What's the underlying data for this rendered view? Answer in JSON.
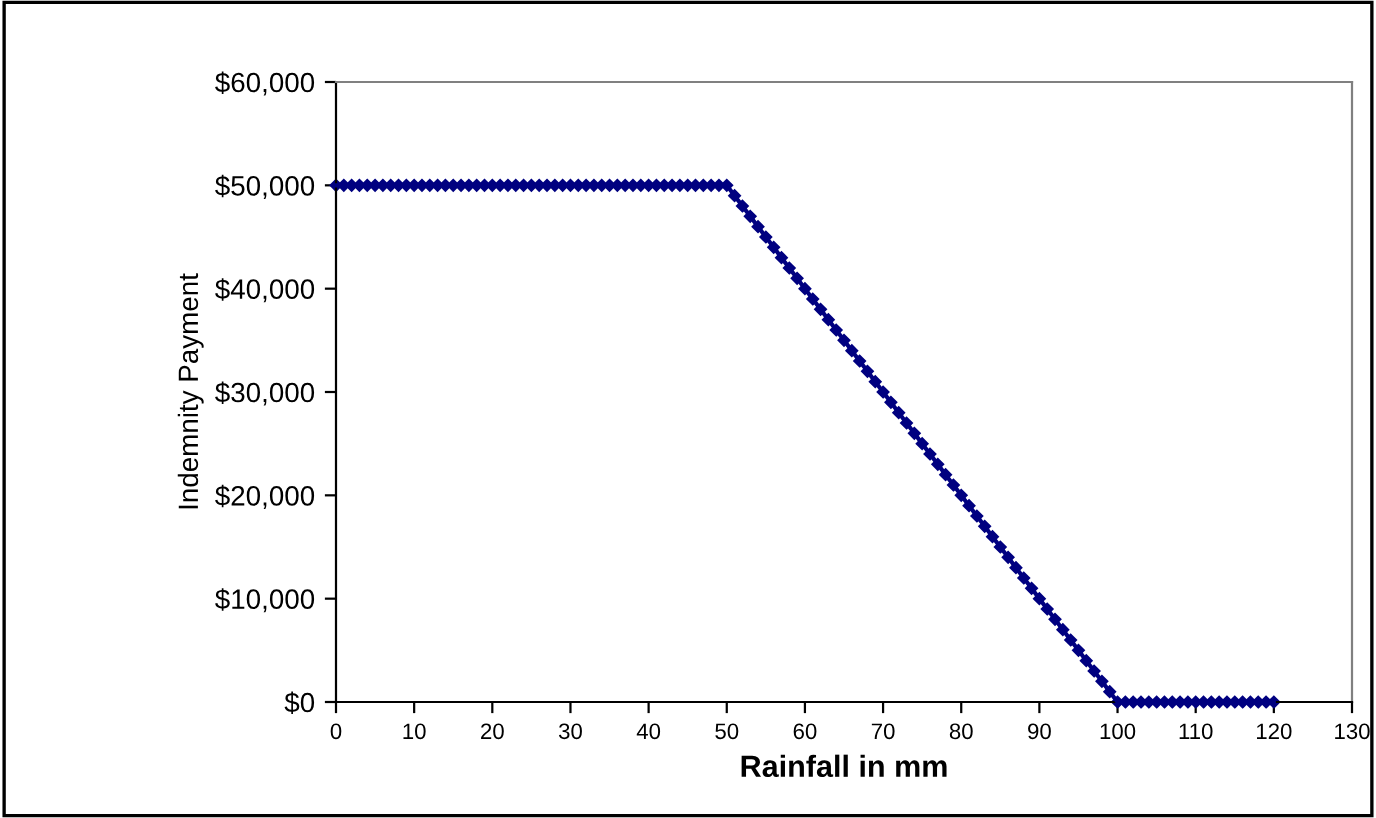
{
  "chart_data": {
    "type": "line",
    "xlabel": "Rainfall in mm",
    "ylabel": "Indemnity Payment",
    "x": [
      0,
      1,
      2,
      3,
      4,
      5,
      6,
      7,
      8,
      9,
      10,
      11,
      12,
      13,
      14,
      15,
      16,
      17,
      18,
      19,
      20,
      21,
      22,
      23,
      24,
      25,
      26,
      27,
      28,
      29,
      30,
      31,
      32,
      33,
      34,
      35,
      36,
      37,
      38,
      39,
      40,
      41,
      42,
      43,
      44,
      45,
      46,
      47,
      48,
      49,
      50,
      51,
      52,
      53,
      54,
      55,
      56,
      57,
      58,
      59,
      60,
      61,
      62,
      63,
      64,
      65,
      66,
      67,
      68,
      69,
      70,
      71,
      72,
      73,
      74,
      75,
      76,
      77,
      78,
      79,
      80,
      81,
      82,
      83,
      84,
      85,
      86,
      87,
      88,
      89,
      90,
      91,
      92,
      93,
      94,
      95,
      96,
      97,
      98,
      99,
      100,
      101,
      102,
      103,
      104,
      105,
      106,
      107,
      108,
      109,
      110,
      111,
      112,
      113,
      114,
      115,
      116,
      117,
      118,
      119,
      120
    ],
    "series": [
      {
        "color": "#000080",
        "values": [
          50000,
          50000,
          50000,
          50000,
          50000,
          50000,
          50000,
          50000,
          50000,
          50000,
          50000,
          50000,
          50000,
          50000,
          50000,
          50000,
          50000,
          50000,
          50000,
          50000,
          50000,
          50000,
          50000,
          50000,
          50000,
          50000,
          50000,
          50000,
          50000,
          50000,
          50000,
          50000,
          50000,
          50000,
          50000,
          50000,
          50000,
          50000,
          50000,
          50000,
          50000,
          50000,
          50000,
          50000,
          50000,
          50000,
          50000,
          50000,
          50000,
          50000,
          50000,
          49000,
          48000,
          47000,
          46000,
          45000,
          44000,
          43000,
          42000,
          41000,
          40000,
          39000,
          38000,
          37000,
          36000,
          35000,
          34000,
          33000,
          32000,
          31000,
          30000,
          29000,
          28000,
          27000,
          26000,
          25000,
          24000,
          23000,
          22000,
          21000,
          20000,
          19000,
          18000,
          17000,
          16000,
          15000,
          14000,
          13000,
          12000,
          11000,
          10000,
          9000,
          8000,
          7000,
          6000,
          5000,
          4000,
          3000,
          2000,
          1000,
          0,
          0,
          0,
          0,
          0,
          0,
          0,
          0,
          0,
          0,
          0,
          0,
          0,
          0,
          0,
          0,
          0,
          0,
          0,
          0,
          0
        ]
      }
    ],
    "xlim": [
      0,
      130
    ],
    "xticks": [
      0,
      10,
      20,
      30,
      40,
      50,
      60,
      70,
      80,
      90,
      100,
      110,
      120,
      130
    ],
    "ylim": [
      0,
      60000
    ],
    "yticks": [
      {
        "value": 0,
        "label": "$0"
      },
      {
        "value": 10000,
        "label": "$10,000"
      },
      {
        "value": 20000,
        "label": "$20,000"
      },
      {
        "value": 30000,
        "label": "$30,000"
      },
      {
        "value": 40000,
        "label": "$40,000"
      },
      {
        "value": 50000,
        "label": "$50,000"
      },
      {
        "value": 60000,
        "label": "$60,000"
      }
    ],
    "marker": "diamond",
    "line_style": "solid",
    "grid": false,
    "legend": false
  }
}
